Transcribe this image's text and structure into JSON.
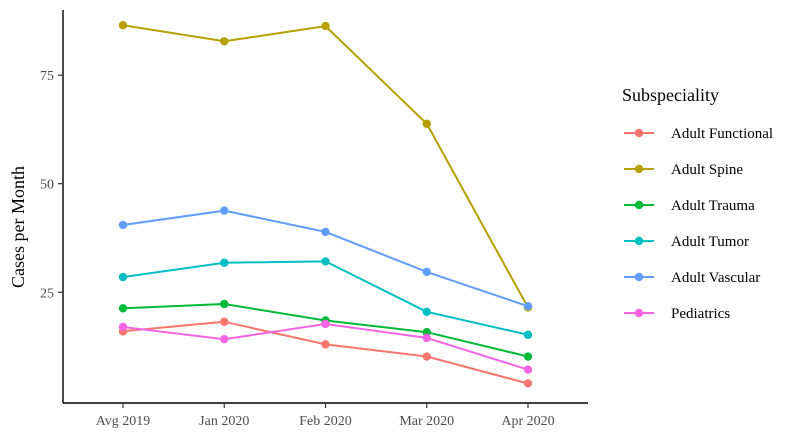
{
  "chart_data": {
    "type": "line",
    "x": [
      "Avg 2019",
      "Jan 2020",
      "Feb 2020",
      "Mar 2020",
      "Apr 2020"
    ],
    "ylabel": "Cases per Month",
    "xlabel": "",
    "yticks": [
      25,
      50,
      75
    ],
    "ylim": [
      -0.5,
      90
    ],
    "grid": false,
    "legend": {
      "title": "Subspeciality",
      "position": "right"
    },
    "series": [
      {
        "name": "Adult Functional",
        "color": "#F8766D",
        "values": [
          16,
          18.2,
          13,
          10.2,
          4
        ]
      },
      {
        "name": "Adult Spine",
        "color": "#B79F00",
        "values": [
          86.5,
          82.8,
          86.3,
          63.8,
          21.5
        ]
      },
      {
        "name": "Adult Trauma",
        "color": "#00BA38",
        "values": [
          21.3,
          22.3,
          18.5,
          15.8,
          10.2
        ]
      },
      {
        "name": "Adult Tumor",
        "color": "#00BFC4",
        "values": [
          28.5,
          31.8,
          32.1,
          20.5,
          15.2
        ]
      },
      {
        "name": "Adult Vascular",
        "color": "#619CFF",
        "values": [
          40.5,
          43.8,
          38.9,
          29.7,
          21.8
        ]
      },
      {
        "name": "Pediatrics",
        "color": "#F564E3",
        "values": [
          17,
          14.2,
          17.7,
          14.5,
          7.2
        ]
      }
    ]
  }
}
